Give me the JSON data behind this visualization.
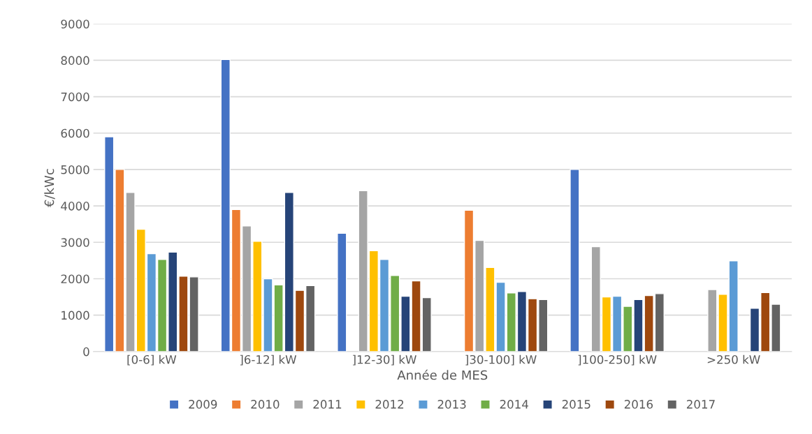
{
  "chart_data": {
    "type": "bar",
    "xlabel": "Année de MES",
    "ylabel": "€/kWc",
    "categories": [
      "[0-6] kW",
      "]6-12] kW",
      "]12-30] kW",
      "]30-100] kW",
      "]100-250] kW",
      ">250 kW"
    ],
    "series": [
      {
        "name": "2009",
        "color": "#4472c4",
        "values": [
          5900,
          8020,
          3250,
          null,
          5000,
          null
        ]
      },
      {
        "name": "2010",
        "color": "#ed7d31",
        "values": [
          5000,
          3900,
          null,
          3880,
          null,
          null
        ]
      },
      {
        "name": "2011",
        "color": "#a5a5a5",
        "values": [
          4370,
          3450,
          4420,
          3050,
          2880,
          1700
        ]
      },
      {
        "name": "2012",
        "color": "#ffc000",
        "values": [
          3360,
          3030,
          2770,
          2310,
          1500,
          1570
        ]
      },
      {
        "name": "2013",
        "color": "#5b9bd5",
        "values": [
          2690,
          2000,
          2530,
          1900,
          1520,
          2490
        ]
      },
      {
        "name": "2014",
        "color": "#70ad47",
        "values": [
          2530,
          1830,
          2090,
          1610,
          1240,
          null
        ]
      },
      {
        "name": "2015",
        "color": "#264478",
        "values": [
          2730,
          4370,
          1520,
          1650,
          1430,
          1190
        ]
      },
      {
        "name": "2016",
        "color": "#9e480e",
        "values": [
          2070,
          1680,
          1940,
          1450,
          1540,
          1620
        ]
      },
      {
        "name": "2017",
        "color": "#636363",
        "values": [
          2050,
          1810,
          1480,
          1430,
          1590,
          1300
        ]
      }
    ],
    "ylim": [
      0,
      9000
    ],
    "yticks": [
      0,
      1000,
      2000,
      3000,
      4000,
      5000,
      6000,
      7000,
      8000,
      9000
    ],
    "grid": "y",
    "legend": "bottom"
  }
}
